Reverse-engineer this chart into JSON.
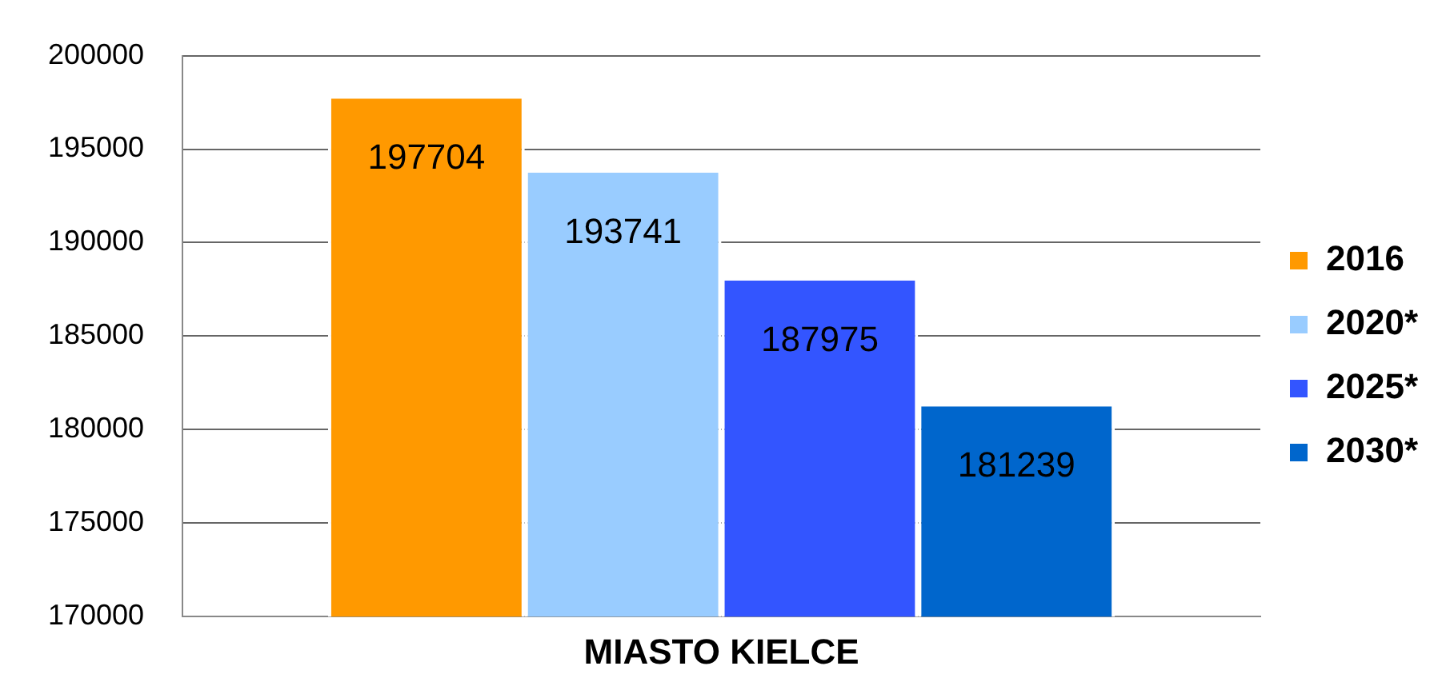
{
  "chart_data": {
    "type": "bar",
    "categories": [
      "MIASTO KIELCE"
    ],
    "series": [
      {
        "name": "2016",
        "color": "#ff9900",
        "values": [
          197704
        ]
      },
      {
        "name": "2020*",
        "color": "#99ccff",
        "values": [
          193741
        ]
      },
      {
        "name": "2025*",
        "color": "#3355ff",
        "values": [
          187975
        ]
      },
      {
        "name": "2030*",
        "color": "#0066cc",
        "values": [
          181239
        ]
      }
    ],
    "ylim": [
      170000,
      200000
    ],
    "yticks": [
      170000,
      175000,
      180000,
      185000,
      190000,
      195000,
      200000
    ],
    "grid": "y",
    "legend": "right",
    "data_labels": true
  }
}
